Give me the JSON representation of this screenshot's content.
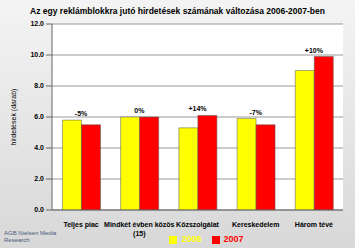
{
  "chart_data": {
    "type": "bar",
    "title": "Az egy reklámblokkra jutó hirdetések számának változása 2006-2007-ben",
    "y_label": "hirdetések (darab)",
    "source": "AGB Nielsen Media Research",
    "categories": [
      "Teljes piac",
      "Mindkét évben közös (15)",
      "Közszolgálat",
      "Kereskedelem",
      "Három tévé"
    ],
    "series": [
      {
        "name": "2006",
        "color": "#ffff00",
        "values": [
          5.8,
          6.0,
          5.3,
          5.9,
          9.0
        ]
      },
      {
        "name": "2007",
        "color": "#ff0000",
        "values": [
          5.5,
          6.0,
          6.1,
          5.5,
          9.9
        ]
      }
    ],
    "annotations": [
      "-5%",
      "0%",
      "+14%",
      "-7%",
      "+10%"
    ],
    "ylim": [
      0,
      12
    ],
    "yticks": [
      {
        "value": 0,
        "label": "0.0"
      },
      {
        "value": 2,
        "label": "2.0"
      },
      {
        "value": 4,
        "label": "4.0"
      },
      {
        "value": 6,
        "label": "6.0"
      },
      {
        "value": 8,
        "label": "8.0"
      },
      {
        "value": 10,
        "label": "10.0"
      },
      {
        "value": 12,
        "label": "12.0"
      }
    ],
    "grid": true,
    "legend": "bottom"
  }
}
